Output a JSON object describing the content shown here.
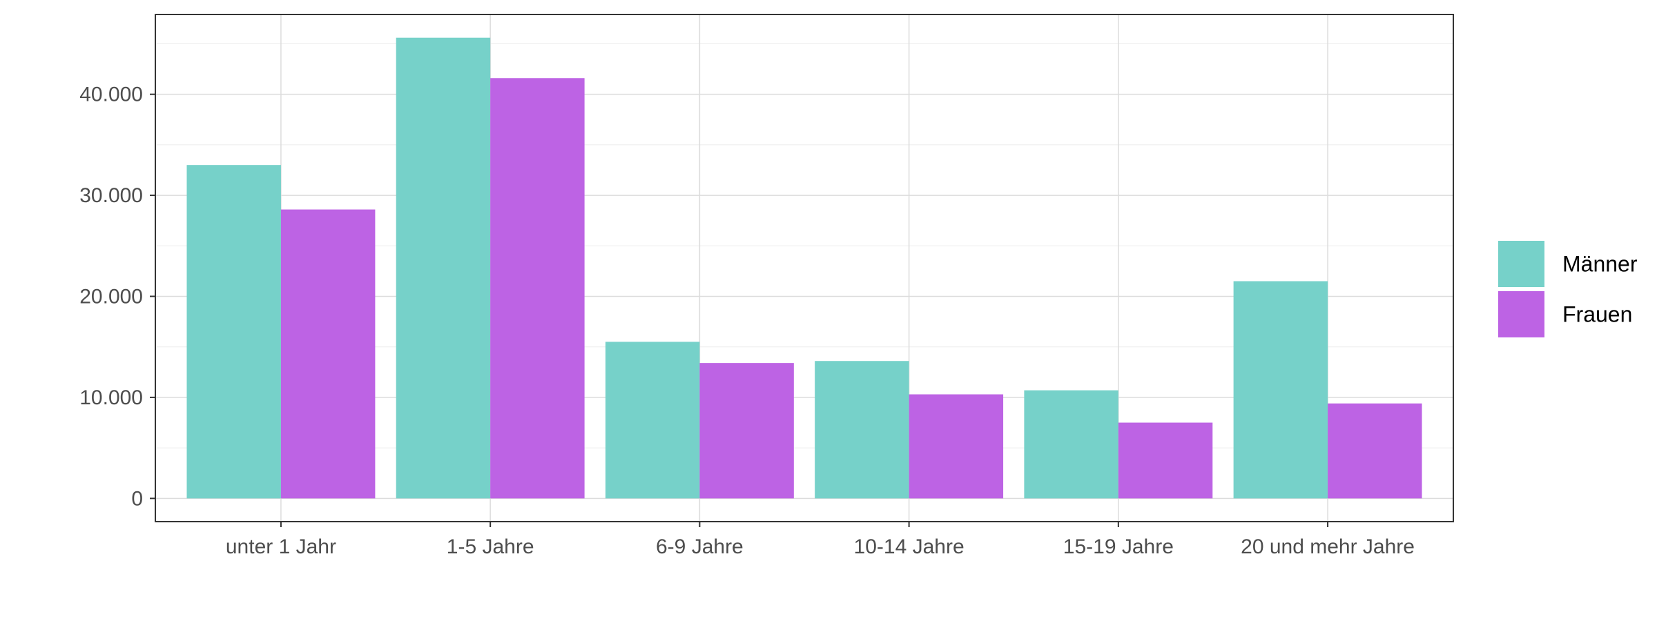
{
  "chart_data": {
    "type": "bar",
    "categories": [
      "unter 1 Jahr",
      "1-5 Jahre",
      "6-9 Jahre",
      "10-14 Jahre",
      "15-19 Jahre",
      "20 und mehr Jahre"
    ],
    "series": [
      {
        "name": "Männer",
        "color": "#76d1c9",
        "values": [
          33000,
          45600,
          15500,
          13600,
          10700,
          21500
        ]
      },
      {
        "name": "Frauen",
        "color": "#bd63e4",
        "values": [
          28600,
          41600,
          13400,
          10300,
          7500,
          9400
        ]
      }
    ],
    "y_ticks": [
      0,
      10000,
      20000,
      30000,
      40000
    ],
    "y_tick_labels": [
      "0",
      "10.000",
      "20.000",
      "30.000",
      "40.000"
    ],
    "ylim": [
      -2300,
      47900
    ],
    "grid": true,
    "legend_position": "right"
  }
}
